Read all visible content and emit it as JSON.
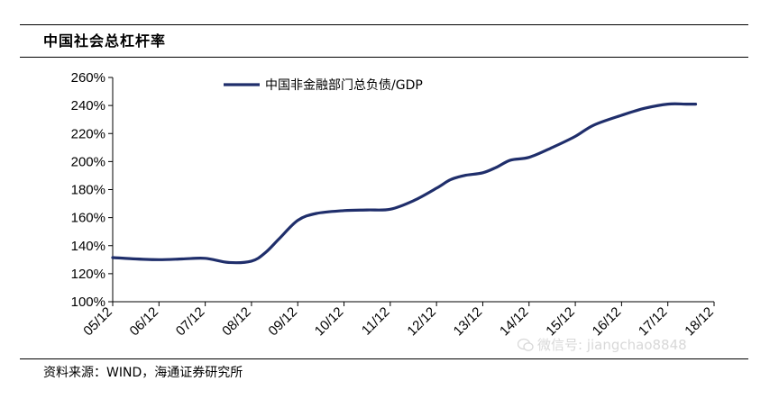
{
  "header": {
    "title": "中国社会总杠杆率"
  },
  "footer": {
    "source": "资料来源：WIND，海通证券研究所"
  },
  "watermark": {
    "text": "微信号: jiangchao8848",
    "icon": "wechat-icon"
  },
  "chart_data": {
    "type": "line",
    "title": "中国社会总杠杆率",
    "xlabel": "",
    "ylabel": "",
    "ylim": [
      100,
      260
    ],
    "ytick_step": 20,
    "ytick_labels": [
      "100%",
      "120%",
      "140%",
      "160%",
      "180%",
      "200%",
      "220%",
      "240%",
      "260%"
    ],
    "categories": [
      "05/12",
      "06/12",
      "07/12",
      "08/12",
      "09/12",
      "10/12",
      "11/12",
      "12/12",
      "13/12",
      "14/12",
      "15/12",
      "16/12",
      "17/12",
      "18/12"
    ],
    "legend_position": "top",
    "series": [
      {
        "name": "中国非金融部门总负债/GDP",
        "color": "#1f2e6b",
        "x": [
          0,
          0.5,
          1,
          1.5,
          2,
          2.5,
          3,
          3.3,
          3.6,
          4,
          4.4,
          5,
          5.5,
          6,
          6.5,
          7,
          7.3,
          7.6,
          8,
          8.3,
          8.6,
          9,
          9.5,
          10,
          10.4,
          11,
          11.5,
          12,
          12.4,
          12.6
        ],
        "values": [
          131.5,
          130.5,
          130,
          130.5,
          131,
          128,
          129,
          135,
          145,
          158,
          163,
          165,
          165.5,
          166,
          172,
          181,
          187,
          190,
          192,
          196,
          201,
          203,
          210,
          218,
          226,
          233,
          238,
          241,
          241,
          241
        ]
      }
    ]
  }
}
